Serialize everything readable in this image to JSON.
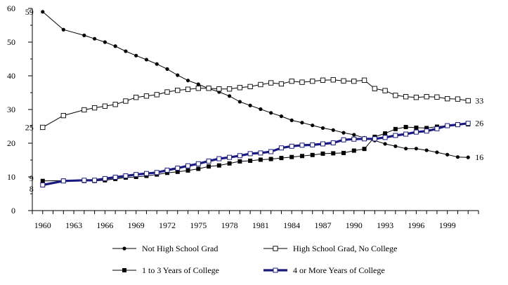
{
  "chart_data": {
    "type": "line",
    "title": "",
    "xlabel": "",
    "ylabel": "",
    "ylim": [
      0,
      60
    ],
    "ytick_step": 10,
    "xlim": [
      1959,
      2002
    ],
    "xtick_labels": [
      "1960",
      "1963",
      "1966",
      "1969",
      "1972",
      "1975",
      "1978",
      "1981",
      "1984",
      "1987",
      "1990",
      "1993",
      "1996",
      "1999"
    ],
    "x": [
      1960,
      1962,
      1964,
      1965,
      1966,
      1967,
      1968,
      1969,
      1970,
      1971,
      1972,
      1973,
      1974,
      1975,
      1976,
      1977,
      1978,
      1979,
      1980,
      1981,
      1982,
      1983,
      1984,
      1985,
      1986,
      1987,
      1988,
      1989,
      1990,
      1991,
      1992,
      1993,
      1994,
      1995,
      1996,
      1997,
      1998,
      1999,
      2000,
      2001
    ],
    "series": [
      {
        "name": "Not High School Grad",
        "style": "line-small-filled",
        "color": "#000000",
        "values": [
          59,
          53.7,
          52,
          51,
          50,
          48.8,
          47.3,
          46,
          44.8,
          43.5,
          42,
          40.2,
          38.6,
          37.5,
          36.2,
          35.2,
          34,
          32.3,
          31.2,
          30.1,
          29,
          28,
          26.8,
          26.1,
          25.3,
          24.5,
          23.9,
          23.1,
          22.5,
          21.6,
          20.8,
          19.8,
          19.1,
          18.4,
          18.4,
          17.9,
          17.3,
          16.6,
          15.9,
          15.8
        ],
        "end_label": "16"
      },
      {
        "name": "High School Grad, No College",
        "style": "line-hollow-square",
        "color": "#000000",
        "values": [
          24.7,
          28.2,
          29.9,
          30.5,
          31,
          31.5,
          32.5,
          33.6,
          34,
          34.4,
          35.2,
          35.7,
          36,
          36.3,
          36.3,
          36.1,
          36.1,
          36.5,
          36.8,
          37.4,
          37.9,
          37.6,
          38.4,
          38.1,
          38.4,
          38.7,
          38.8,
          38.5,
          38.4,
          38.7,
          36.2,
          35.6,
          34.2,
          33.8,
          33.6,
          33.8,
          33.7,
          33.2,
          33.1,
          32.6
        ],
        "end_label": "33"
      },
      {
        "name": "1 to 3 Years of College",
        "style": "line-filled-square",
        "color": "#000000",
        "values": [
          8.8,
          8.9,
          8.8,
          8.8,
          9,
          9.4,
          9.8,
          10,
          10.3,
          10.7,
          11.2,
          11.5,
          11.9,
          12.4,
          13.1,
          13.4,
          14,
          14.6,
          14.8,
          15.1,
          15.3,
          15.6,
          15.9,
          16.2,
          16.5,
          16.9,
          17,
          17.1,
          17.8,
          18.3,
          21.9,
          22.9,
          24.2,
          24.8,
          24.6,
          24.5,
          24.9,
          25.2,
          25.6,
          25.6
        ]
      },
      {
        "name": "4 or More Years of College",
        "style": "line-thick-navy-hollow",
        "color": "#1a1a80",
        "values": [
          7.6,
          8.8,
          9,
          9,
          9.5,
          9.9,
          10.3,
          10.7,
          11,
          11.3,
          12,
          12.6,
          13.3,
          13.9,
          14.7,
          15.4,
          15.8,
          16.3,
          16.9,
          17.1,
          17.5,
          18.6,
          19.1,
          19.4,
          19.5,
          19.8,
          20.1,
          21,
          21.2,
          21.3,
          21.3,
          21.7,
          22.3,
          22.7,
          23.3,
          23.6,
          24.3,
          25.2,
          25.5,
          25.9
        ],
        "end_label": "26"
      }
    ],
    "annotations": [
      {
        "text": "59",
        "at_x": 1960,
        "at_y": 59,
        "side": "left"
      },
      {
        "text": "25",
        "at_x": 1960,
        "at_y": 24.7,
        "side": "left"
      },
      {
        "text": "9",
        "at_x": 1960,
        "at_y": 9.6,
        "side": "left"
      },
      {
        "text": "8",
        "at_x": 1960,
        "at_y": 6.5,
        "side": "left"
      }
    ],
    "legend_position": "bottom"
  }
}
